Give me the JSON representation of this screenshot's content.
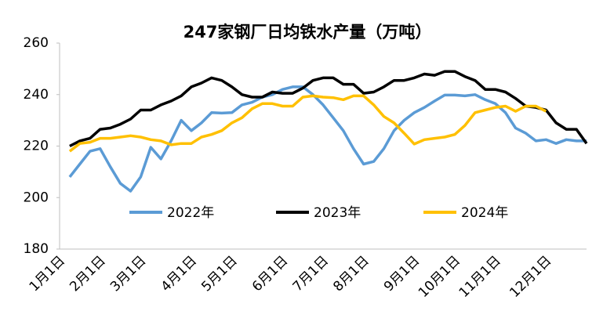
{
  "chart_data": {
    "type": "line",
    "title": "247家钢厂日均铁水产量（万吨）",
    "categories": [
      "1月1日",
      null,
      null,
      null,
      "2月1日",
      null,
      null,
      null,
      "3月1日",
      null,
      null,
      null,
      null,
      "4月1日",
      null,
      null,
      null,
      "5月1日",
      null,
      null,
      null,
      null,
      "6月1日",
      null,
      null,
      null,
      "7月1日",
      null,
      null,
      null,
      "8月1日",
      null,
      null,
      null,
      null,
      "9月1日",
      null,
      null,
      null,
      "10月1日",
      null,
      null,
      null,
      "11月1日",
      null,
      null,
      null,
      null,
      "12月1日",
      null,
      null,
      null,
      null
    ],
    "series": [
      {
        "name": "2022年",
        "color": "#5b9bd5",
        "values": [
          null,
          208,
          213,
          218,
          219,
          212,
          205.5,
          202.5,
          208,
          219.5,
          215,
          222,
          230,
          226,
          229,
          233,
          232.8,
          233,
          236,
          237,
          239,
          240,
          242,
          243,
          243,
          240,
          236,
          231,
          226,
          219,
          213,
          214,
          219,
          226,
          230,
          233,
          235,
          237.5,
          239.8,
          239.8,
          239.5,
          240,
          238,
          236.5,
          233,
          227,
          225,
          222,
          222.5,
          221,
          222.5,
          222,
          222
        ]
      },
      {
        "name": "2023年",
        "color": "#000000",
        "values": [
          null,
          220,
          222,
          223,
          226.5,
          227,
          228.5,
          230.5,
          234,
          234,
          236,
          237.5,
          239.5,
          243,
          244.5,
          246.5,
          245.5,
          243,
          240,
          239,
          239,
          241,
          240.5,
          240.5,
          242.5,
          245.5,
          246.5,
          246.5,
          244,
          244,
          240.5,
          241,
          243,
          245.5,
          245.5,
          246.5,
          248,
          247.5,
          249,
          249,
          247,
          245.5,
          242,
          242,
          241,
          238.5,
          235.5,
          235,
          234,
          229,
          226.5,
          226.5,
          221
        ]
      },
      {
        "name": "2024年",
        "color": "#ffc000",
        "values": [
          null,
          218,
          221,
          221.5,
          223,
          223,
          223.5,
          224,
          223.5,
          222.5,
          222,
          220.5,
          221,
          221,
          223.5,
          224.5,
          226,
          229,
          231,
          234.5,
          236.5,
          236.5,
          235.5,
          235.5,
          239,
          239.5,
          239,
          238.8,
          238,
          239.5,
          239.5,
          236,
          231.5,
          229,
          225,
          220.8,
          222.5,
          223,
          223.5,
          224.5,
          228,
          233,
          234,
          235,
          235.5,
          233.5,
          235.5,
          235.5,
          233.5,
          null,
          null,
          null,
          null
        ]
      }
    ],
    "ylim": [
      180,
      260
    ],
    "yticks": [
      180,
      200,
      220,
      240,
      260
    ],
    "grid": false
  }
}
